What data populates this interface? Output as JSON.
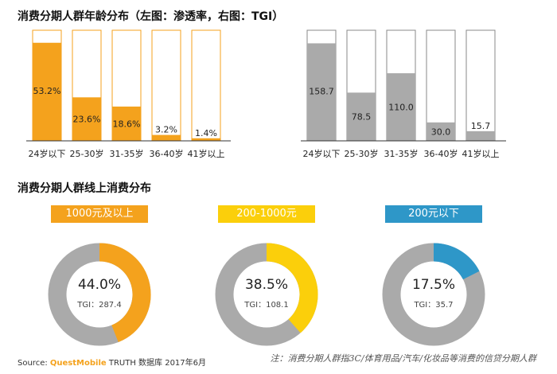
{
  "section1_title": "消费分期人群年龄分布（左图：渗透率，右图：TGI）",
  "section2_title": "消费分期人群线上消费分布",
  "chart_data": [
    {
      "type": "bar",
      "categories": [
        "24岁以下",
        "25-30岁",
        "31-35岁",
        "36-40岁",
        "41岁以上"
      ],
      "values": [
        53.2,
        23.6,
        18.6,
        3.2,
        1.4
      ],
      "value_labels": [
        "53.2%",
        "23.6%",
        "18.6%",
        "3.2%",
        "1.4%"
      ],
      "ylim": [
        0,
        60
      ],
      "color": "#f4a21d"
    },
    {
      "type": "bar",
      "categories": [
        "24岁以下",
        "25-30岁",
        "31-35岁",
        "36-40岁",
        "41岁以上"
      ],
      "values": [
        158.7,
        78.5,
        110.0,
        30.0,
        15.7
      ],
      "value_labels": [
        "158.7",
        "78.5",
        "110.0",
        "30.0",
        "15.7"
      ],
      "ylim": [
        0,
        180
      ],
      "color": "#aaaaaa"
    },
    {
      "type": "pie",
      "donuts": [
        {
          "label": "1000元及以上",
          "value": 44.0,
          "value_label": "44.0%",
          "tgi_text": "TGI：287.4",
          "color": "#f4a21d"
        },
        {
          "label": "200-1000元",
          "value": 38.5,
          "value_label": "38.5%",
          "tgi_text": "TGI：108.1",
          "color": "#fbcf0b"
        },
        {
          "label": "200元以下",
          "value": 17.5,
          "value_label": "17.5%",
          "tgi_text": "TGI：35.7",
          "color": "#2e97c8"
        }
      ],
      "track_color": "#aaaaaa"
    }
  ],
  "footer": {
    "source_prefix": "Source: ",
    "source_brand": "QuestMobile",
    "source_rest": " TRUTH 数据库 2017年6月",
    "note": "注：消费分期人群指3C/体育用品/汽车/化妆品等消费的信贷分期人群"
  }
}
